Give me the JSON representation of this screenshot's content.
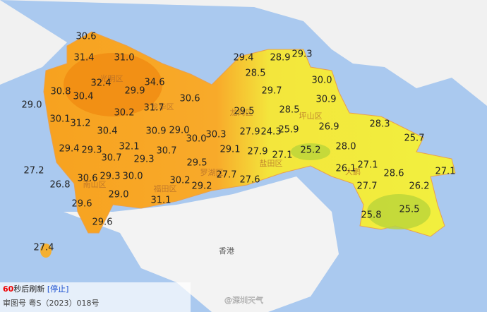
{
  "temps": [
    "30.6",
    "31.4",
    "31.0",
    "29.4",
    "28.9",
    "29.3",
    "32.4",
    "34.6",
    "28.5",
    "30.0",
    "30.8",
    "30.4",
    "29.9",
    "29.7",
    "30.9",
    "29.0",
    "30.6",
    "30.2",
    "31.7",
    "29.5",
    "28.5",
    "30.1",
    "31.2",
    "30.4",
    "30.9",
    "29.0",
    "27.9",
    "24.3",
    "25.9",
    "26.9",
    "28.3",
    "30.0",
    "30.3",
    "25.7",
    "29.4",
    "29.3",
    "32.1",
    "30.7",
    "29.1",
    "27.9",
    "27.1",
    "25.2",
    "28.0",
    "30.7",
    "29.3",
    "29.5",
    "27.2",
    "27.1",
    "26.1",
    "27.1",
    "30.6",
    "29.3",
    "30.0",
    "30.2",
    "27.7",
    "27.6",
    "28.6",
    "26.8",
    "29.2",
    "27.7",
    "26.2",
    "29.0",
    "31.1",
    "29.6",
    "25.5",
    "25.8",
    "29.6",
    "27.4"
  ],
  "districts": [
    "光明区",
    "龙华区",
    "龙岗区",
    "坪山区",
    "罗湖区",
    "盐田区",
    "大鹏",
    "南山区",
    "福田区"
  ],
  "hk": "香港",
  "footer": {
    "countdown": "60",
    "refresh": "秒后刷新",
    "stop": "[停止]",
    "license": "审图号 粤S（2023）018号"
  },
  "watermark": "@深圳天气"
}
